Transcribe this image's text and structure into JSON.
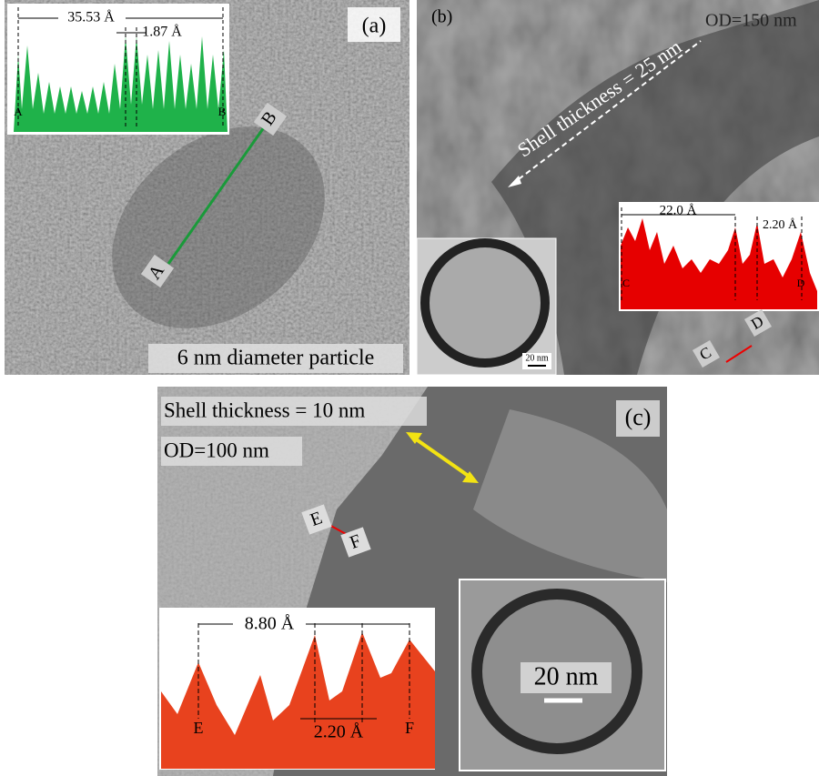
{
  "panels": [
    {
      "label": "(a)",
      "profile": {
        "span": "35.53 Å",
        "spacing": "1.87 Å",
        "start": "A",
        "end": "B"
      },
      "line_start": "A",
      "line_end": "B",
      "caption": "6 nm diameter particle"
    },
    {
      "label": "(b)",
      "outer_diameter": "OD=150 nm",
      "shell": "Shell thickness = 25 nm",
      "profile": {
        "span": "22.0 Å",
        "spacing": "2.20 Å",
        "start": "C",
        "end": "D"
      },
      "line_start": "C",
      "line_end": "D",
      "inset_scale": "20 nm"
    },
    {
      "label": "(c)",
      "shell": "Shell thickness = 10 nm",
      "outer_diameter": "OD=100 nm",
      "line_start": "E",
      "line_end": "F",
      "profile": {
        "span": "8.80 Å",
        "spacing": "2.20 Å",
        "start": "E",
        "end": "F"
      },
      "inset_scale": "20 nm"
    }
  ]
}
